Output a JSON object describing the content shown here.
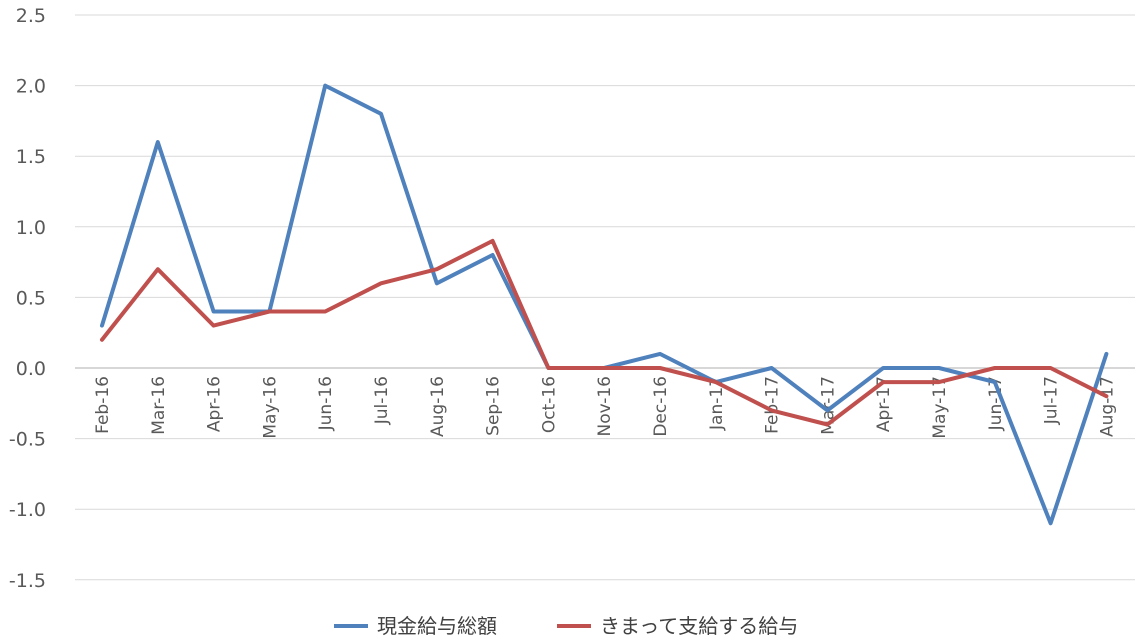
{
  "chart_data": {
    "type": "line",
    "categories": [
      "Feb-16",
      "Mar-16",
      "Apr-16",
      "May-16",
      "Jun-16",
      "Jul-16",
      "Aug-16",
      "Sep-16",
      "Oct-16",
      "Nov-16",
      "Dec-16",
      "Jan-17",
      "Feb-17",
      "Mar-17",
      "Apr-17",
      "May-17",
      "Jun-17",
      "Jul-17",
      "Aug-17"
    ],
    "series": [
      {
        "name": "現金給与総額",
        "color": "#4f81bd",
        "values": [
          0.3,
          1.6,
          0.4,
          0.4,
          2.0,
          1.8,
          0.6,
          0.8,
          0.0,
          0.0,
          0.1,
          -0.1,
          0.0,
          -0.3,
          0.0,
          0.0,
          -0.1,
          -1.1,
          0.1
        ]
      },
      {
        "name": "きまって支給する給与",
        "color": "#c0504d",
        "values": [
          0.2,
          0.7,
          0.3,
          0.4,
          0.4,
          0.6,
          0.7,
          0.9,
          0.0,
          0.0,
          0.0,
          -0.1,
          -0.3,
          -0.4,
          -0.1,
          -0.1,
          0.0,
          0.0,
          -0.2
        ]
      }
    ],
    "yticks": [
      "2.5",
      "2.0",
      "1.5",
      "1.0",
      "0.5",
      "0.0",
      "-0.5",
      "-1.0",
      "-1.5"
    ],
    "ylim": [
      -1.5,
      2.5
    ],
    "grid": true,
    "legend_position": "bottom"
  }
}
